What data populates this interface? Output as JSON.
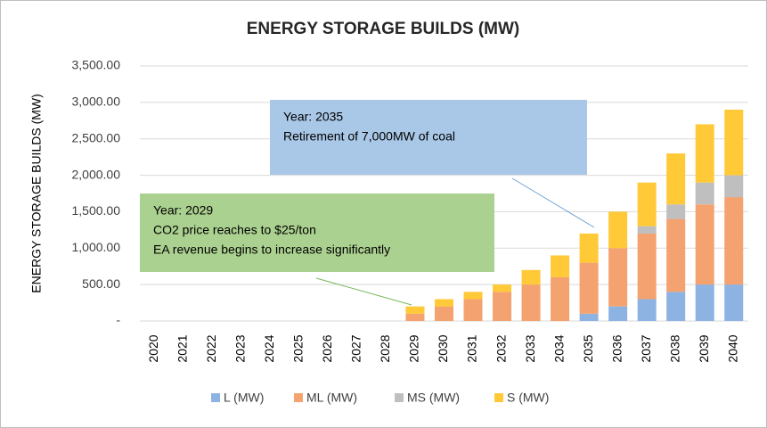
{
  "chart_data": {
    "type": "bar",
    "stacked": true,
    "title": "ENERGY STORAGE BUILDS (MW)",
    "y_label": "ENERGY STORAGE BUILDS (MW)",
    "categories": [
      "2020",
      "2021",
      "2022",
      "2023",
      "2024",
      "2025",
      "2026",
      "2027",
      "2028",
      "2029",
      "2030",
      "2031",
      "2032",
      "2033",
      "2034",
      "2035",
      "2036",
      "2037",
      "2038",
      "2039",
      "2040"
    ],
    "series": [
      {
        "name": "L (MW)",
        "color": "#8db3e2",
        "values": [
          0,
          0,
          0,
          0,
          0,
          0,
          0,
          0,
          0,
          0,
          0,
          0,
          0,
          0,
          0,
          100,
          200,
          300,
          400,
          500,
          500
        ]
      },
      {
        "name": "ML (MW)",
        "color": "#f4a26f",
        "values": [
          0,
          0,
          0,
          0,
          0,
          0,
          0,
          0,
          0,
          100,
          200,
          300,
          400,
          500,
          600,
          700,
          800,
          900,
          1000,
          1100,
          1200
        ]
      },
      {
        "name": "MS (MW)",
        "color": "#bfbfbf",
        "values": [
          0,
          0,
          0,
          0,
          0,
          0,
          0,
          0,
          0,
          0,
          0,
          0,
          0,
          0,
          0,
          0,
          0,
          100,
          200,
          300,
          300
        ]
      },
      {
        "name": "S (MW)",
        "color": "#ffc937",
        "values": [
          0,
          0,
          0,
          0,
          0,
          0,
          0,
          0,
          0,
          100,
          100,
          100,
          100,
          200,
          300,
          400,
          500,
          600,
          700,
          800,
          900
        ]
      }
    ],
    "ylim": [
      0,
      3500
    ],
    "yticks": [
      {
        "value": 0,
        "label": "-"
      },
      {
        "value": 500,
        "label": "500.00"
      },
      {
        "value": 1000,
        "label": "1,000.00"
      },
      {
        "value": 1500,
        "label": "1,500.00"
      },
      {
        "value": 2000,
        "label": "2,000.00"
      },
      {
        "value": 2500,
        "label": "2,500.00"
      },
      {
        "value": 3000,
        "label": "3,000.00"
      },
      {
        "value": 3500,
        "label": "3,500.00"
      }
    ],
    "grid": true,
    "legend": "bottom",
    "annotations": [
      {
        "lines": [
          "Year: 2035",
          "Retirement of 7,000MW of coal"
        ],
        "color": "#a9c8e7"
      },
      {
        "lines": [
          "Year: 2029",
          "CO2 price reaches to $25/ton",
          "EA revenue begins to increase significantly"
        ],
        "color": "#abd190"
      }
    ]
  }
}
